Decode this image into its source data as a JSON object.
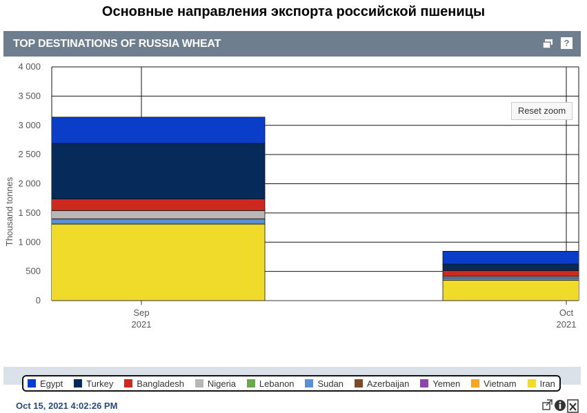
{
  "page_title": "Основные направления экспорта российской пшеницы",
  "widget": {
    "title": "TOP DESTINATIONS OF RUSSIA WHEAT",
    "popout_icon": "popout-icon",
    "help_label": "?",
    "reset_zoom_label": "Reset zoom",
    "timestamp": "Oct 15, 2021 4:02:26 PM",
    "footer_icons": [
      "external-link-icon",
      "info-icon",
      "excel-export-icon"
    ]
  },
  "chart_data": {
    "type": "bar",
    "stacked": true,
    "categories": [
      {
        "month": "Sep",
        "year": "2021"
      },
      {
        "month": "Oct",
        "year": "2021"
      }
    ],
    "ylabel": "Thousand tonnes",
    "ylim": [
      0,
      4000
    ],
    "yticks": [
      0,
      500,
      1000,
      1500,
      2000,
      2500,
      3000,
      3500,
      4000
    ],
    "ytick_labels": [
      "0",
      "500",
      "1 000",
      "1 500",
      "2 000",
      "2 500",
      "3 000",
      "3 500",
      "4 000"
    ],
    "grid": true,
    "legend_position": "bottom",
    "series": [
      {
        "name": "Iran",
        "color": "#f0da2a",
        "values": [
          1310,
          350
        ]
      },
      {
        "name": "Vietnam",
        "color": "#f5a623",
        "values": [
          0,
          0
        ]
      },
      {
        "name": "Yemen",
        "color": "#8e44ad",
        "values": [
          0,
          0
        ]
      },
      {
        "name": "Azerbaijan",
        "color": "#7a4a2a",
        "values": [
          0,
          0
        ]
      },
      {
        "name": "Sudan",
        "color": "#5b8fd1",
        "values": [
          90,
          40
        ]
      },
      {
        "name": "Lebanon",
        "color": "#6aa84f",
        "values": [
          0,
          0
        ]
      },
      {
        "name": "Nigeria",
        "color": "#b7b7b7",
        "values": [
          140,
          25
        ]
      },
      {
        "name": "Bangladesh",
        "color": "#cc2a1e",
        "values": [
          200,
          100
        ]
      },
      {
        "name": "Turkey",
        "color": "#062b5a",
        "values": [
          950,
          110
        ]
      },
      {
        "name": "Egypt",
        "color": "#0a3ec9",
        "values": [
          450,
          220
        ]
      }
    ],
    "legend_order": [
      "Egypt",
      "Turkey",
      "Bangladesh",
      "Nigeria",
      "Lebanon",
      "Sudan",
      "Azerbaijan",
      "Yemen",
      "Vietnam",
      "Iran"
    ]
  }
}
